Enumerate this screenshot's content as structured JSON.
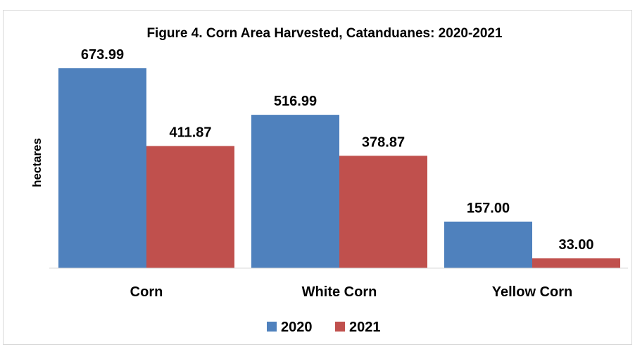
{
  "chart_data": {
    "type": "bar",
    "title": "Figure 4. Corn Area Harvested, Catanduanes:  2020-2021",
    "xlabel": "",
    "ylabel": "hectares",
    "categories": [
      "Corn",
      "White Corn",
      "Yellow Corn"
    ],
    "series": [
      {
        "name": "2020",
        "color": "#4F81BD",
        "values": [
          673.99,
          516.99,
          157.0
        ],
        "labels": [
          "673.99",
          "516.99",
          "157.00"
        ]
      },
      {
        "name": "2021",
        "color": "#C0504D",
        "values": [
          411.87,
          378.87,
          33.0
        ],
        "labels": [
          "411.87",
          "378.87",
          "33.00"
        ]
      }
    ],
    "ylim": [
      0,
      700
    ],
    "grid": false,
    "legend": "bottom"
  }
}
